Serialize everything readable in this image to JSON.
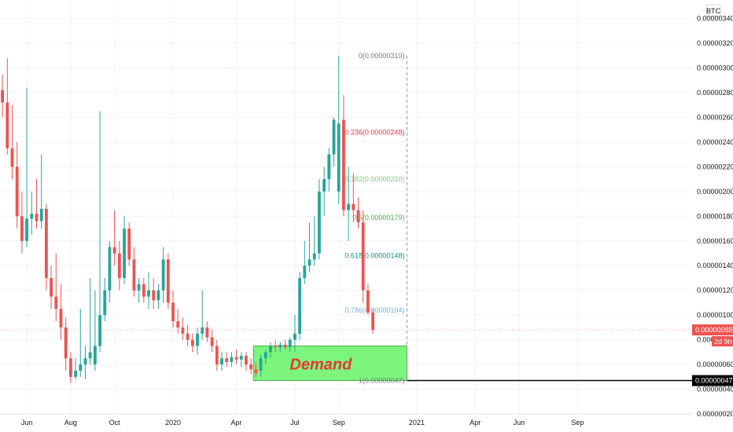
{
  "chart_data": {
    "type": "candlestick",
    "currency": "BTC",
    "y_ticks": [
      "0.00000340",
      "0.00000320",
      "0.00000300",
      "0.00000280",
      "0.00000260",
      "0.00000240",
      "0.00000220",
      "0.00000200",
      "0.00000180",
      "0.00000160",
      "0.00000140",
      "0.00000120",
      "0.00000100",
      "0.00000080",
      "0.00000060",
      "0.00000040",
      "0.00000020"
    ],
    "x_ticks": [
      {
        "label": "Jun",
        "idx": 5
      },
      {
        "label": "Aug",
        "idx": 14
      },
      {
        "label": "Oct",
        "idx": 23
      },
      {
        "label": "2020",
        "idx": 35
      },
      {
        "label": "Apr",
        "idx": 48
      },
      {
        "label": "Jul",
        "idx": 60
      },
      {
        "label": "Sep",
        "idx": 69
      },
      {
        "label": "2021",
        "idx": 85
      },
      {
        "label": "Apr",
        "idx": 97
      },
      {
        "label": "Jun",
        "idx": 106
      },
      {
        "label": "Sep",
        "idx": 118
      }
    ],
    "ylim": [
      2e-07,
      3.55e-06
    ],
    "x_range": [
      -0.5,
      141.5
    ],
    "current_price": {
      "value": "0.00000088",
      "countdown": "2d 9h"
    },
    "demand_level": {
      "value": "0.00000047"
    },
    "demand_zone": {
      "label": "Demand",
      "from_idx": 52,
      "to_idx": 83,
      "low": 4.7e-07,
      "high": 7.5e-07
    },
    "fibonacci": {
      "from_idx": 52,
      "to_idx": 83,
      "levels": [
        {
          "label": "0(0.00000310)",
          "value": 3.1e-06,
          "color": "#787b86"
        },
        {
          "label": "0.236(0.00000248)",
          "value": 2.48e-06,
          "color": "#f23645"
        },
        {
          "label": "0.382(0.00000210)",
          "value": 2.1e-06,
          "color": "#81c784"
        },
        {
          "label": "0.5(0.00000179)",
          "value": 1.79e-06,
          "color": "#4caf50"
        },
        {
          "label": "0.618(0.00000148)",
          "value": 1.48e-06,
          "color": "#089981"
        },
        {
          "label": "0.786(0.00000104)",
          "value": 1.04e-06,
          "color": "#64b5f6"
        },
        {
          "label": "1(0.00000047)",
          "value": 4.7e-07,
          "color": "#787b86"
        }
      ]
    },
    "colors": {
      "up": "#26a69a",
      "down": "#ef5350",
      "demand_fill": "#7cf57c"
    },
    "candles": [
      {
        "o": 2.82,
        "h": 2.95,
        "l": 2.6,
        "c": 2.72
      },
      {
        "o": 2.72,
        "h": 3.08,
        "l": 2.3,
        "c": 2.35
      },
      {
        "o": 2.35,
        "h": 2.7,
        "l": 2.1,
        "c": 2.2
      },
      {
        "o": 2.2,
        "h": 2.4,
        "l": 1.7,
        "c": 1.8
      },
      {
        "o": 1.8,
        "h": 2.0,
        "l": 1.5,
        "c": 1.6
      },
      {
        "o": 1.6,
        "h": 2.84,
        "l": 1.55,
        "c": 1.78
      },
      {
        "o": 1.78,
        "h": 2.0,
        "l": 1.65,
        "c": 1.82
      },
      {
        "o": 1.82,
        "h": 2.1,
        "l": 1.7,
        "c": 1.76
      },
      {
        "o": 1.76,
        "h": 2.3,
        "l": 1.7,
        "c": 1.86
      },
      {
        "o": 1.86,
        "h": 1.9,
        "l": 1.2,
        "c": 1.3
      },
      {
        "o": 1.3,
        "h": 1.4,
        "l": 1.05,
        "c": 1.15
      },
      {
        "o": 1.15,
        "h": 1.5,
        "l": 0.95,
        "c": 1.05
      },
      {
        "o": 1.05,
        "h": 1.25,
        "l": 0.8,
        "c": 0.9
      },
      {
        "o": 0.9,
        "h": 0.98,
        "l": 0.55,
        "c": 0.65
      },
      {
        "o": 0.65,
        "h": 0.7,
        "l": 0.45,
        "c": 0.5
      },
      {
        "o": 0.5,
        "h": 0.65,
        "l": 0.48,
        "c": 0.55
      },
      {
        "o": 0.55,
        "h": 1.05,
        "l": 0.5,
        "c": 0.6
      },
      {
        "o": 0.6,
        "h": 0.75,
        "l": 0.48,
        "c": 0.65
      },
      {
        "o": 0.65,
        "h": 1.3,
        "l": 0.6,
        "c": 0.7
      },
      {
        "o": 0.6,
        "h": 1.2,
        "l": 0.55,
        "c": 0.75
      },
      {
        "o": 0.75,
        "h": 2.65,
        "l": 0.7,
        "c": 1.0
      },
      {
        "o": 1.0,
        "h": 1.3,
        "l": 0.95,
        "c": 1.2
      },
      {
        "o": 1.2,
        "h": 1.6,
        "l": 1.1,
        "c": 1.55
      },
      {
        "o": 1.55,
        "h": 1.85,
        "l": 1.4,
        "c": 1.5
      },
      {
        "o": 1.5,
        "h": 1.6,
        "l": 1.2,
        "c": 1.3
      },
      {
        "o": 1.3,
        "h": 1.8,
        "l": 1.25,
        "c": 1.7
      },
      {
        "o": 1.7,
        "h": 1.75,
        "l": 1.4,
        "c": 1.45
      },
      {
        "o": 1.45,
        "h": 1.55,
        "l": 1.15,
        "c": 1.2
      },
      {
        "o": 1.2,
        "h": 1.3,
        "l": 1.1,
        "c": 1.25
      },
      {
        "o": 1.25,
        "h": 1.3,
        "l": 1.1,
        "c": 1.15
      },
      {
        "o": 1.15,
        "h": 1.35,
        "l": 1.05,
        "c": 1.2
      },
      {
        "o": 1.2,
        "h": 1.3,
        "l": 1.05,
        "c": 1.12
      },
      {
        "o": 1.12,
        "h": 1.25,
        "l": 1.05,
        "c": 1.2
      },
      {
        "o": 1.2,
        "h": 1.55,
        "l": 1.1,
        "c": 1.45
      },
      {
        "o": 1.45,
        "h": 1.5,
        "l": 1.05,
        "c": 1.1
      },
      {
        "o": 1.1,
        "h": 1.2,
        "l": 0.9,
        "c": 0.95
      },
      {
        "o": 0.95,
        "h": 1.05,
        "l": 0.85,
        "c": 0.9
      },
      {
        "o": 0.9,
        "h": 0.98,
        "l": 0.8,
        "c": 0.85
      },
      {
        "o": 0.85,
        "h": 0.92,
        "l": 0.75,
        "c": 0.8
      },
      {
        "o": 0.8,
        "h": 0.85,
        "l": 0.7,
        "c": 0.75
      },
      {
        "o": 0.75,
        "h": 0.9,
        "l": 0.68,
        "c": 0.85
      },
      {
        "o": 0.85,
        "h": 1.2,
        "l": 0.8,
        "c": 0.9
      },
      {
        "o": 0.9,
        "h": 0.95,
        "l": 0.78,
        "c": 0.82
      },
      {
        "o": 0.82,
        "h": 0.88,
        "l": 0.7,
        "c": 0.75
      },
      {
        "o": 0.75,
        "h": 0.8,
        "l": 0.55,
        "c": 0.6
      },
      {
        "o": 0.6,
        "h": 0.7,
        "l": 0.55,
        "c": 0.65
      },
      {
        "o": 0.65,
        "h": 0.7,
        "l": 0.58,
        "c": 0.62
      },
      {
        "o": 0.62,
        "h": 0.7,
        "l": 0.58,
        "c": 0.66
      },
      {
        "o": 0.66,
        "h": 0.72,
        "l": 0.6,
        "c": 0.64
      },
      {
        "o": 0.64,
        "h": 0.7,
        "l": 0.58,
        "c": 0.67
      },
      {
        "o": 0.67,
        "h": 0.7,
        "l": 0.55,
        "c": 0.6
      },
      {
        "o": 0.6,
        "h": 0.65,
        "l": 0.52,
        "c": 0.56
      },
      {
        "o": 0.56,
        "h": 0.62,
        "l": 0.5,
        "c": 0.53
      },
      {
        "o": 0.55,
        "h": 0.68,
        "l": 0.5,
        "c": 0.65
      },
      {
        "o": 0.65,
        "h": 0.72,
        "l": 0.6,
        "c": 0.7
      },
      {
        "o": 0.7,
        "h": 0.78,
        "l": 0.65,
        "c": 0.75
      },
      {
        "o": 0.75,
        "h": 0.8,
        "l": 0.7,
        "c": 0.74
      },
      {
        "o": 0.74,
        "h": 0.78,
        "l": 0.7,
        "c": 0.76
      },
      {
        "o": 0.76,
        "h": 0.8,
        "l": 0.72,
        "c": 0.74
      },
      {
        "o": 0.74,
        "h": 0.82,
        "l": 0.7,
        "c": 0.8
      },
      {
        "o": 0.8,
        "h": 1.0,
        "l": 0.7,
        "c": 0.85
      },
      {
        "o": 0.85,
        "h": 1.35,
        "l": 0.8,
        "c": 1.3
      },
      {
        "o": 1.3,
        "h": 1.6,
        "l": 1.25,
        "c": 1.4
      },
      {
        "o": 1.4,
        "h": 1.75,
        "l": 1.35,
        "c": 1.45
      },
      {
        "o": 1.45,
        "h": 1.8,
        "l": 1.4,
        "c": 1.5
      },
      {
        "o": 1.5,
        "h": 2.1,
        "l": 1.45,
        "c": 2.0
      },
      {
        "o": 2.0,
        "h": 2.2,
        "l": 1.8,
        "c": 2.1
      },
      {
        "o": 2.1,
        "h": 2.35,
        "l": 2.0,
        "c": 2.3
      },
      {
        "o": 2.3,
        "h": 2.6,
        "l": 2.2,
        "c": 2.58
      },
      {
        "o": 2.0,
        "h": 3.1,
        "l": 1.9,
        "c": 2.55
      },
      {
        "o": 2.58,
        "h": 2.78,
        "l": 1.8,
        "c": 1.85
      },
      {
        "o": 1.85,
        "h": 2.2,
        "l": 1.6,
        "c": 1.9
      },
      {
        "o": 1.9,
        "h": 2.15,
        "l": 1.75,
        "c": 1.85
      },
      {
        "o": 1.85,
        "h": 1.95,
        "l": 1.7,
        "c": 1.75
      },
      {
        "o": 1.75,
        "h": 1.85,
        "l": 1.1,
        "c": 1.2
      },
      {
        "o": 1.2,
        "h": 1.25,
        "l": 1.0,
        "c": 1.02
      },
      {
        "o": 1.02,
        "h": 1.05,
        "l": 0.85,
        "c": 0.88
      }
    ]
  }
}
